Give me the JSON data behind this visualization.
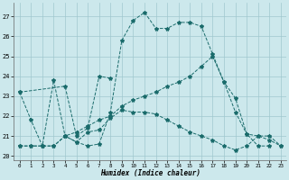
{
  "xlabel": "Humidex (Indice chaleur)",
  "bg_color": "#cce8ec",
  "grid_color": "#a0c8ce",
  "line_color": "#1a6b6b",
  "xlim": [
    -0.5,
    23.5
  ],
  "ylim": [
    19.8,
    27.7
  ],
  "yticks": [
    20,
    21,
    22,
    23,
    24,
    25,
    26,
    27
  ],
  "xticks": [
    0,
    1,
    2,
    3,
    4,
    5,
    6,
    7,
    8,
    9,
    10,
    11,
    12,
    13,
    14,
    15,
    16,
    17,
    18,
    19,
    20,
    21,
    22,
    23
  ],
  "line1_x": [
    0,
    1,
    2,
    3,
    4,
    5,
    6,
    7,
    8,
    9,
    10,
    11,
    12,
    13,
    14,
    15,
    16,
    17,
    18,
    19,
    20,
    21,
    22
  ],
  "line1_y": [
    23.2,
    21.8,
    20.5,
    23.8,
    21.0,
    20.7,
    20.5,
    20.6,
    22.2,
    25.8,
    26.8,
    27.2,
    26.4,
    26.4,
    26.7,
    26.7,
    26.5,
    25.1,
    23.7,
    22.9,
    21.1,
    20.5,
    20.5
  ],
  "line2_x": [
    0,
    4,
    5,
    6,
    7,
    8
  ],
  "line2_y": [
    23.2,
    23.5,
    21.0,
    21.4,
    24.0,
    23.9
  ],
  "line3_x": [
    0,
    1,
    2,
    3,
    4,
    5,
    6,
    7,
    8,
    9,
    10,
    11,
    12,
    13,
    14,
    15,
    16,
    17,
    18,
    19,
    20,
    21,
    22,
    23
  ],
  "line3_y": [
    20.5,
    20.5,
    20.5,
    20.5,
    21.0,
    20.7,
    21.2,
    21.3,
    21.9,
    22.3,
    22.2,
    22.2,
    22.1,
    21.8,
    21.5,
    21.2,
    21.0,
    20.8,
    20.5,
    20.3,
    20.5,
    21.0,
    21.0,
    20.5
  ],
  "line4_x": [
    0,
    1,
    2,
    3,
    4,
    5,
    6,
    7,
    8,
    9,
    10,
    11,
    12,
    13,
    14,
    15,
    16,
    17,
    18,
    19,
    20,
    21,
    22,
    23
  ],
  "line4_y": [
    20.5,
    20.5,
    20.5,
    20.5,
    21.0,
    21.2,
    21.5,
    21.8,
    22.0,
    22.5,
    22.8,
    23.0,
    23.2,
    23.5,
    23.7,
    24.0,
    24.5,
    25.0,
    23.7,
    22.2,
    21.1,
    21.0,
    20.8,
    20.5
  ]
}
